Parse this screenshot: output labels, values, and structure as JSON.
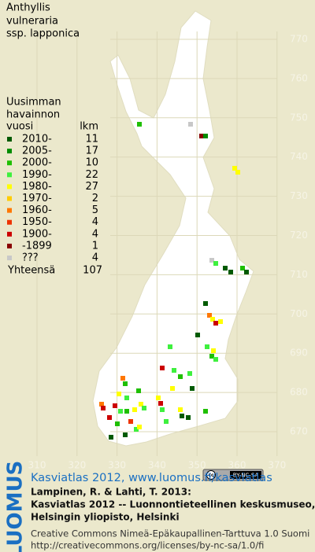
{
  "title": [
    "Anthyllis",
    "vulneraria",
    "ssp. lapponica"
  ],
  "legend": {
    "header": [
      "Uusimman",
      "havainnon"
    ],
    "year_heading": "vuosi",
    "count_heading": "lkm",
    "rows": [
      {
        "label": "2010-",
        "count": 11,
        "color": "#005a00"
      },
      {
        "label": "2005-",
        "count": 17,
        "color": "#008c00"
      },
      {
        "label": "2000-",
        "count": 10,
        "color": "#1fbf00"
      },
      {
        "label": "1990-",
        "count": 22,
        "color": "#3ef03e"
      },
      {
        "label": "1980-",
        "count": 27,
        "color": "#ffff00"
      },
      {
        "label": "1970-",
        "count": 2,
        "color": "#ffcc00"
      },
      {
        "label": "1960-",
        "count": 5,
        "color": "#ff7700"
      },
      {
        "label": "1950-",
        "count": 4,
        "color": "#ee3300"
      },
      {
        "label": "1900-",
        "count": 4,
        "color": "#cc0000"
      },
      {
        "label": "-1899",
        "count": 1,
        "color": "#880000"
      },
      {
        "label": "???",
        "count": 4,
        "color": "#c8c8c8"
      }
    ],
    "total_label": "Yhteensä",
    "total": 107
  },
  "map": {
    "xticks": [
      310,
      320,
      330,
      340,
      350,
      360,
      370
    ],
    "yticks": [
      670,
      680,
      690,
      700,
      710,
      720,
      730,
      740,
      750,
      760,
      770
    ],
    "license_badge": [
      "cc",
      "BY-NC-SA"
    ]
  },
  "footer": {
    "logo": "LUOMUS",
    "link": "Kasviatlas 2012, www.luomus.fi/kasviatlas",
    "citation": [
      "Lampinen, R. & Lahti, T. 2013:",
      "Kasviatlas 2012 -- Luonnontieteellinen keskusmuseo,",
      "Helsingin yliopisto, Helsinki"
    ],
    "license": [
      "Creative Commons Nimeä-Epäkaupallinen-Tarttuva 1.0 Suomi",
      "http://creativecommons.org/licenses/by-nc-sa/1.0/fi"
    ]
  }
}
